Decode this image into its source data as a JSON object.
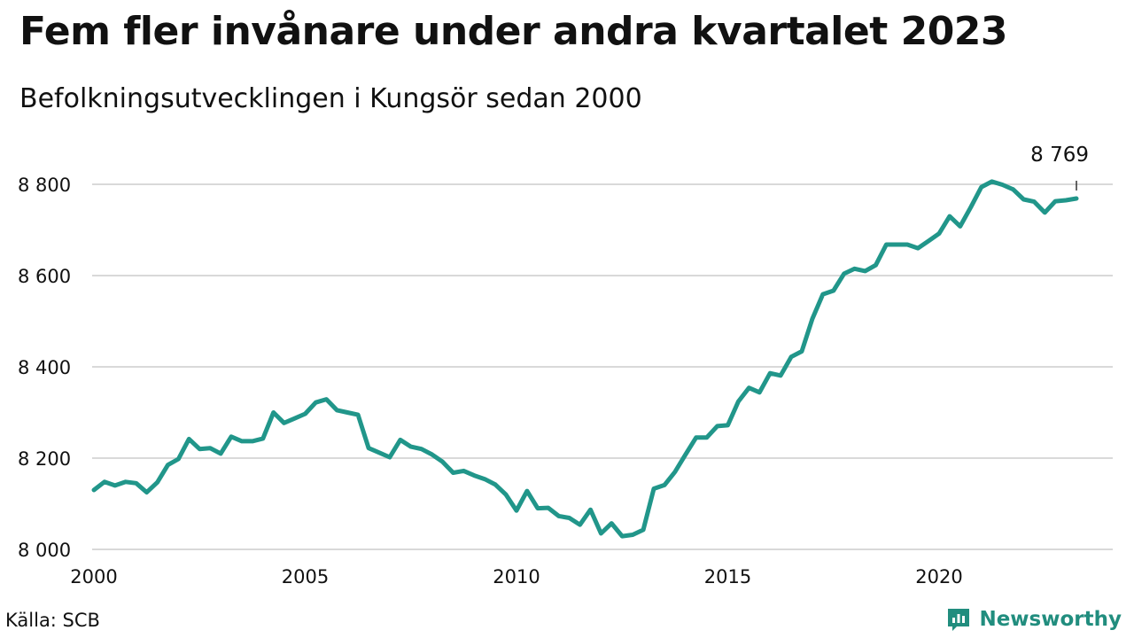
{
  "title": "Fem fler invånare under andra kvartalet 2023",
  "subtitle": "Befolkningsutvecklingen i Kungsör sedan 2000",
  "source": "Källa: SCB",
  "brand": {
    "name": "Newsworthy",
    "icon": "newsworthy-logo-icon",
    "color": "#218d7e"
  },
  "colors": {
    "line": "#21968a",
    "grid": "#d9d9d9"
  },
  "chart_data": {
    "type": "line",
    "title": "Fem fler invånare under andra kvartalet 2023",
    "subtitle": "Befolkningsutvecklingen i Kungsör sedan 2000",
    "xlim": [
      2000,
      2023.75
    ],
    "ylim": [
      8000,
      8800
    ],
    "x_ticks": [
      2000,
      2005,
      2010,
      2015,
      2020
    ],
    "x_tick_labels": [
      "2000",
      "2005",
      "2010",
      "2015",
      "2020"
    ],
    "y_ticks": [
      8000,
      8200,
      8400,
      8600,
      8800
    ],
    "y_tick_labels": [
      "8 000",
      "8 200",
      "8 400",
      "8 600",
      "8 800"
    ],
    "grid": "horizontal",
    "end_label": "8 769",
    "series": [
      {
        "x": [
          2000.0,
          2000.25,
          2000.5,
          2000.75,
          2001.0,
          2001.25,
          2001.5,
          2001.75,
          2002.0,
          2002.25,
          2002.5,
          2002.75,
          2003.0,
          2003.25,
          2003.5,
          2003.75,
          2004.0,
          2004.25,
          2004.5,
          2004.75,
          2005.0,
          2005.25,
          2005.5,
          2005.75,
          2006.0,
          2006.25,
          2006.5,
          2006.75,
          2007.0,
          2007.25,
          2007.5,
          2007.75,
          2008.0,
          2008.25,
          2008.5,
          2008.75,
          2009.0,
          2009.25,
          2009.5,
          2009.75,
          2010.0,
          2010.25,
          2010.5,
          2010.75,
          2011.0,
          2011.25,
          2011.5,
          2011.75,
          2012.0,
          2012.25,
          2012.5,
          2012.75,
          2013.0,
          2013.25,
          2013.5,
          2013.75,
          2014.0,
          2014.25,
          2014.5,
          2014.75,
          2015.0,
          2015.25,
          2015.5,
          2015.75,
          2016.0,
          2016.25,
          2016.5,
          2016.75,
          2017.0,
          2017.25,
          2017.5,
          2017.75,
          2018.0,
          2018.25,
          2018.5,
          2018.75,
          2019.0,
          2019.25,
          2019.5,
          2019.75,
          2020.0,
          2020.25,
          2020.5,
          2020.75,
          2021.0,
          2021.25,
          2021.5,
          2021.75,
          2022.0,
          2022.25,
          2022.5,
          2022.75,
          2023.0,
          2023.25
        ],
        "y": [
          8130,
          8148,
          8140,
          8148,
          8145,
          8125,
          8147,
          8185,
          8198,
          8242,
          8220,
          8222,
          8210,
          8247,
          8237,
          8237,
          8243,
          8300,
          8277,
          8287,
          8297,
          8322,
          8329,
          8305,
          8300,
          8295,
          8222,
          8212,
          8202,
          8240,
          8225,
          8220,
          8208,
          8192,
          8168,
          8172,
          8162,
          8154,
          8142,
          8120,
          8085,
          8128,
          8090,
          8091,
          8073,
          8069,
          8054,
          8087,
          8035,
          8057,
          8029,
          8032,
          8043,
          8133,
          8141,
          8170,
          8208,
          8245,
          8245,
          8270,
          8272,
          8324,
          8354,
          8344,
          8386,
          8381,
          8422,
          8434,
          8505,
          8559,
          8567,
          8604,
          8615,
          8610,
          8623,
          8668,
          8668,
          8668,
          8660,
          8676,
          8692,
          8730,
          8708,
          8750,
          8794,
          8806,
          8799,
          8789,
          8767,
          8762,
          8738,
          8763,
          8765,
          8769
        ]
      }
    ]
  }
}
